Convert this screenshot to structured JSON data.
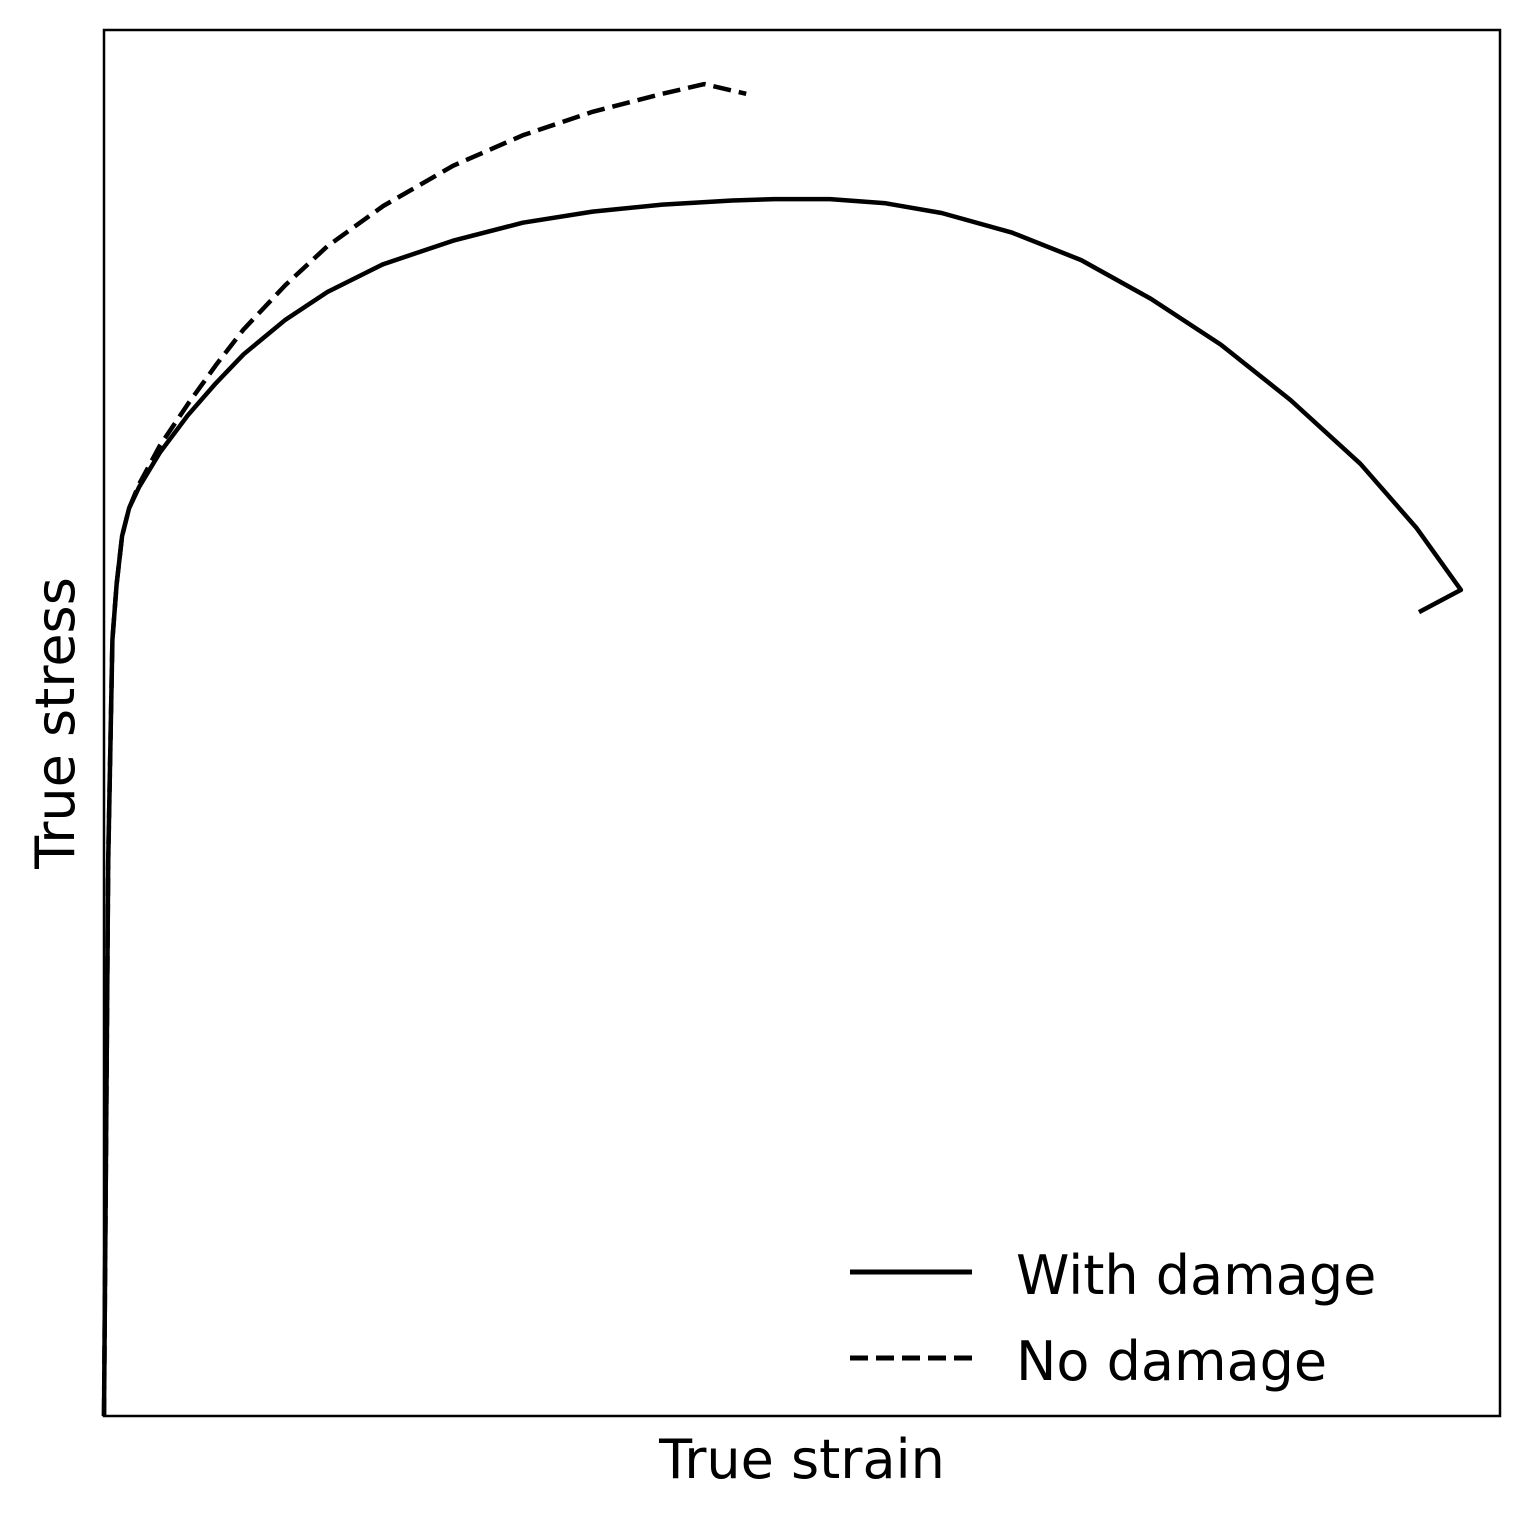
{
  "chart_data": {
    "type": "line",
    "title": "",
    "xlabel": "True strain",
    "ylabel": "True stress",
    "xlim": [
      0,
      1
    ],
    "ylim": [
      0,
      1
    ],
    "grid": false,
    "ticks": false,
    "legend_position": "bottom-right",
    "series": [
      {
        "name": "With damage",
        "style": "solid",
        "color": "#000000",
        "points": [
          [
            0.0,
            0.0
          ],
          [
            0.003,
            0.4
          ],
          [
            0.006,
            0.56
          ],
          [
            0.009,
            0.6
          ],
          [
            0.013,
            0.635
          ],
          [
            0.018,
            0.655
          ],
          [
            0.025,
            0.67
          ],
          [
            0.04,
            0.695
          ],
          [
            0.06,
            0.722
          ],
          [
            0.08,
            0.745
          ],
          [
            0.1,
            0.766
          ],
          [
            0.13,
            0.791
          ],
          [
            0.16,
            0.811
          ],
          [
            0.2,
            0.831
          ],
          [
            0.25,
            0.848
          ],
          [
            0.3,
            0.861
          ],
          [
            0.35,
            0.869
          ],
          [
            0.4,
            0.874
          ],
          [
            0.45,
            0.877
          ],
          [
            0.48,
            0.878
          ],
          [
            0.52,
            0.878
          ],
          [
            0.56,
            0.875
          ],
          [
            0.6,
            0.868
          ],
          [
            0.65,
            0.854
          ],
          [
            0.7,
            0.834
          ],
          [
            0.75,
            0.806
          ],
          [
            0.8,
            0.773
          ],
          [
            0.85,
            0.733
          ],
          [
            0.9,
            0.687
          ],
          [
            0.94,
            0.641
          ],
          [
            0.972,
            0.596
          ],
          [
            0.942,
            0.58
          ]
        ]
      },
      {
        "name": "No damage",
        "style": "dashed",
        "color": "#000000",
        "points": [
          [
            0.0,
            0.0
          ],
          [
            0.003,
            0.4
          ],
          [
            0.006,
            0.56
          ],
          [
            0.009,
            0.6
          ],
          [
            0.013,
            0.635
          ],
          [
            0.018,
            0.655
          ],
          [
            0.025,
            0.672
          ],
          [
            0.04,
            0.7
          ],
          [
            0.06,
            0.73
          ],
          [
            0.08,
            0.758
          ],
          [
            0.1,
            0.784
          ],
          [
            0.13,
            0.816
          ],
          [
            0.16,
            0.844
          ],
          [
            0.2,
            0.873
          ],
          [
            0.25,
            0.902
          ],
          [
            0.3,
            0.924
          ],
          [
            0.35,
            0.941
          ],
          [
            0.4,
            0.954
          ],
          [
            0.43,
            0.961
          ],
          [
            0.46,
            0.954
          ]
        ]
      }
    ]
  }
}
